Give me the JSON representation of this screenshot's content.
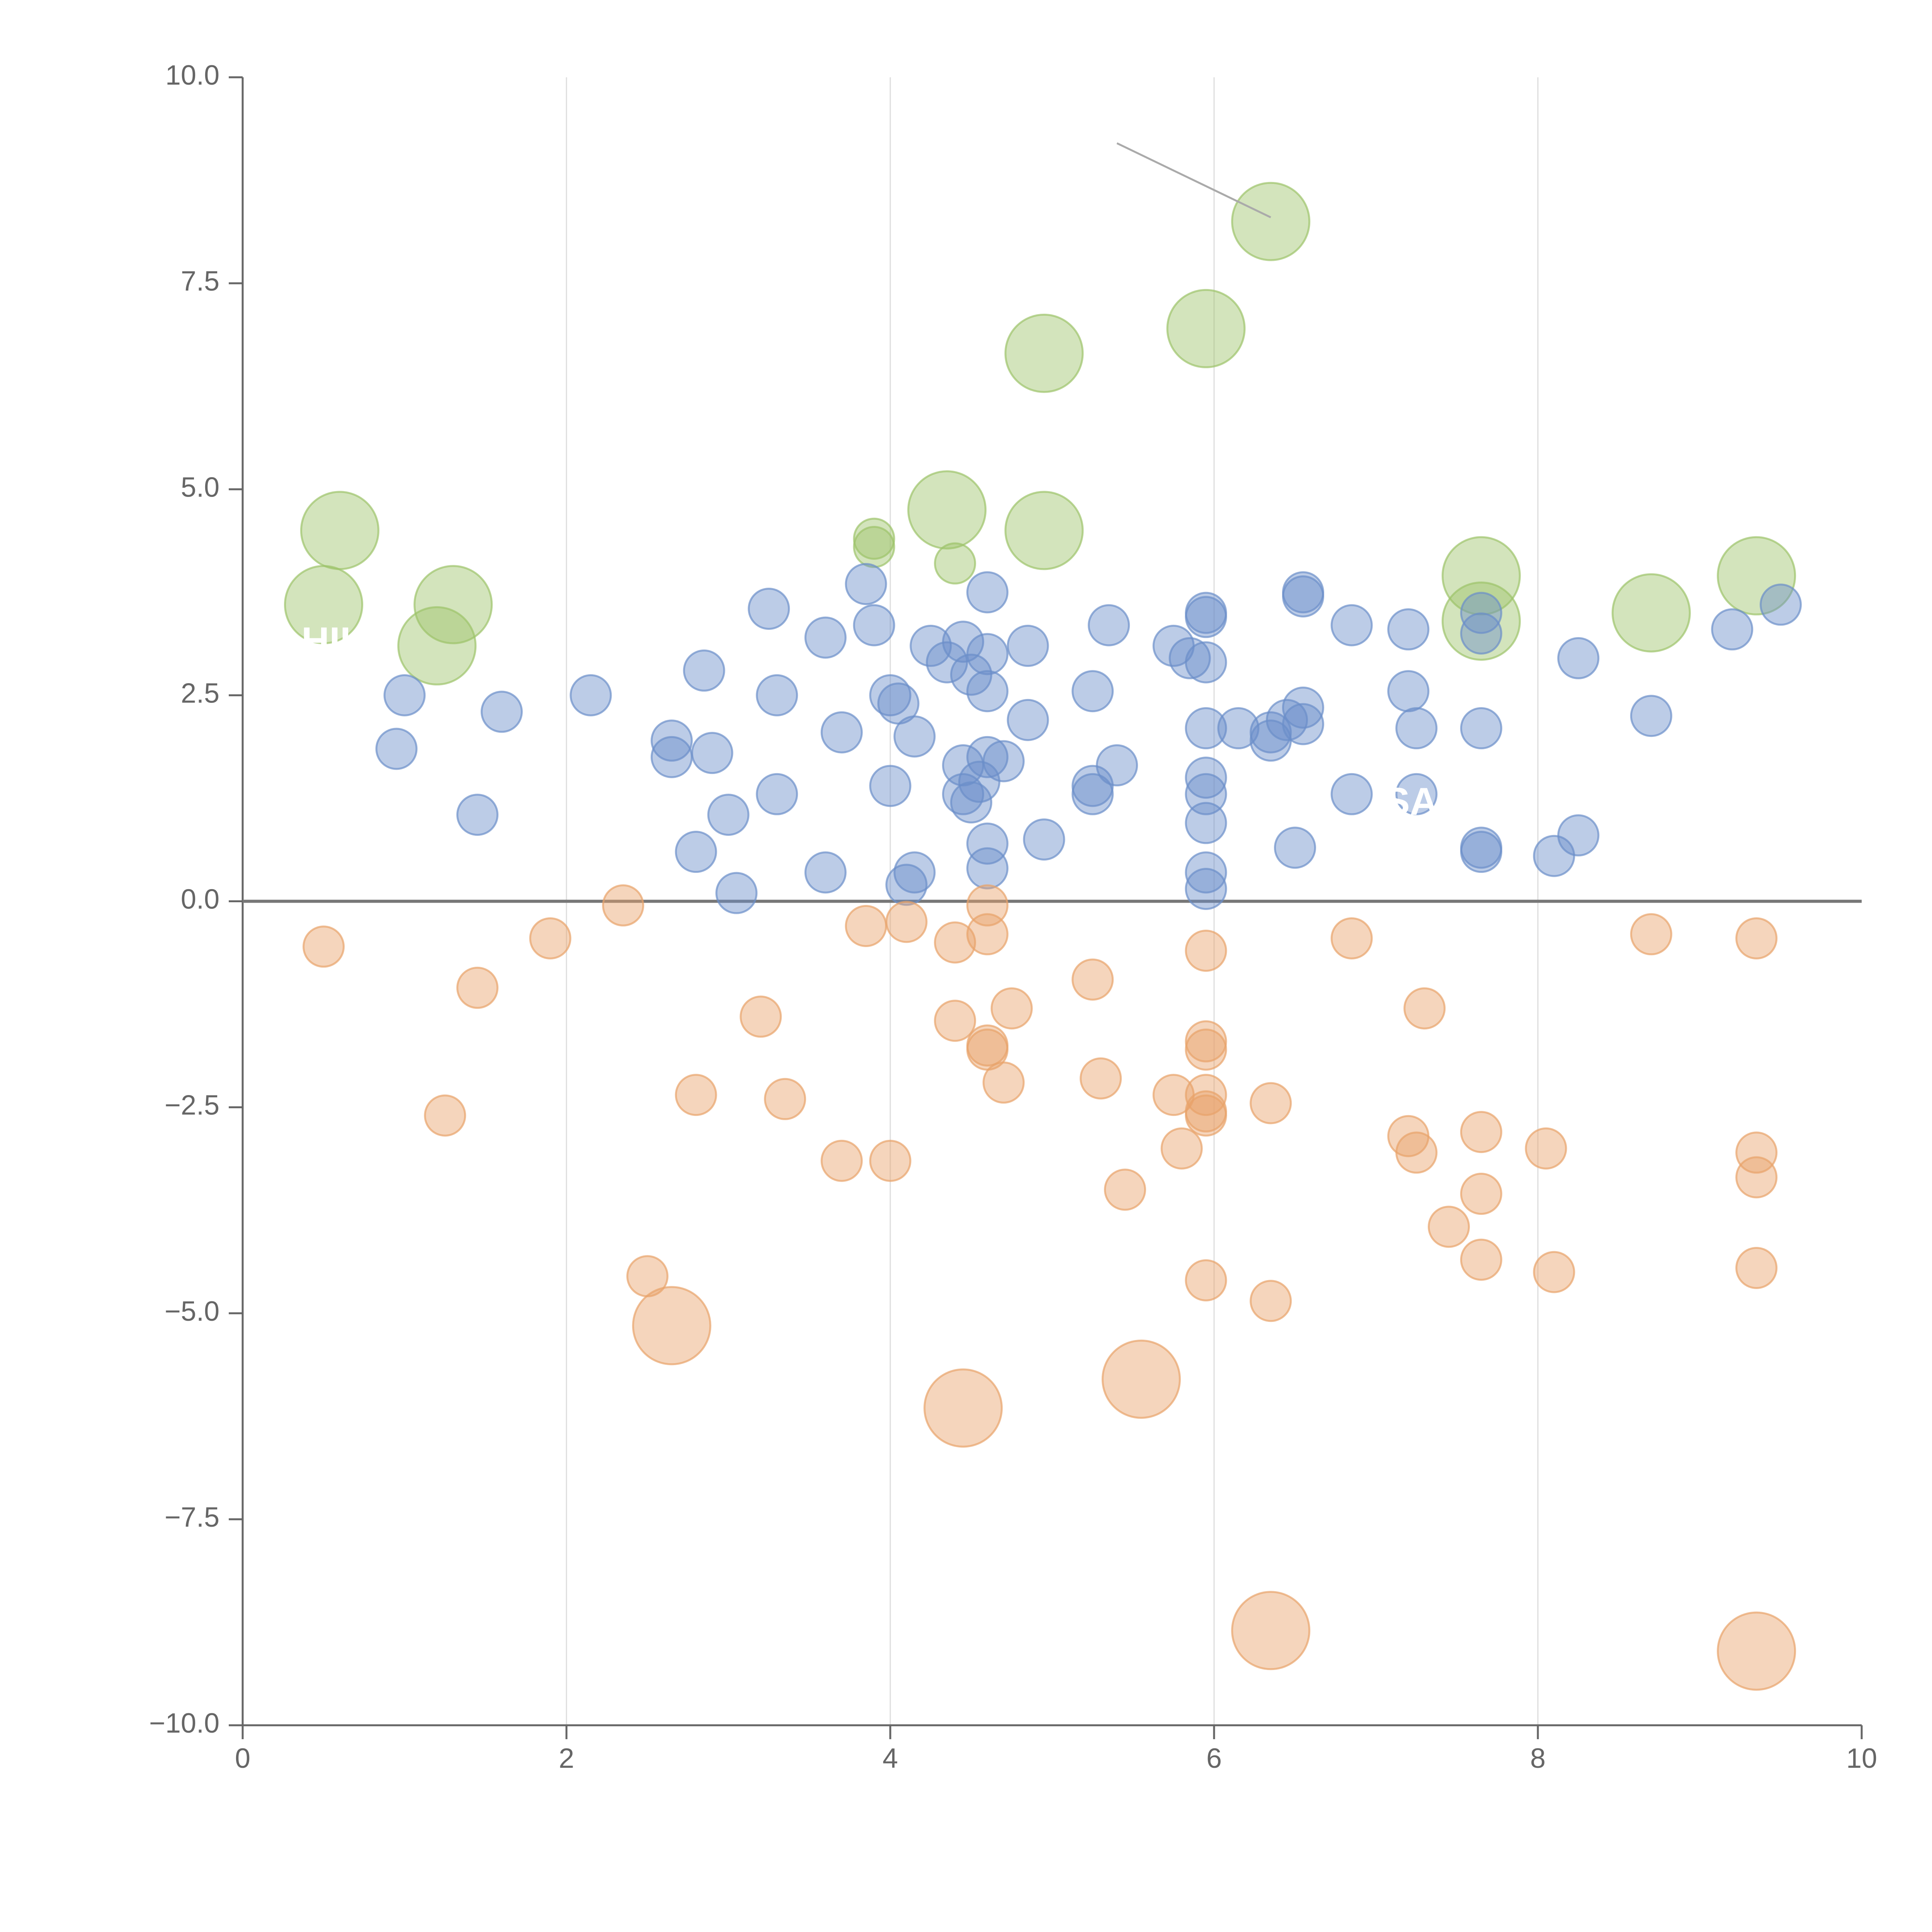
{
  "chart_data": {
    "type": "scatter",
    "title": "",
    "xlabel": "",
    "ylabel": "",
    "xlim": [
      0,
      10
    ],
    "ylim": [
      -10,
      10
    ],
    "x_ticks": [
      0,
      2,
      4,
      6,
      8,
      10
    ],
    "x_tick_labels": [
      "0",
      "2",
      "4",
      "6",
      "8",
      "10"
    ],
    "y_ticks": [
      10,
      7.5,
      5,
      2.5,
      0,
      -2.5,
      -5,
      -7.5,
      -10
    ],
    "y_tick_labels": [
      "10.0",
      "7.5",
      "5.0",
      "2.5",
      "0.0",
      "−2.5",
      "−5.0",
      "−7.5",
      "−10.0"
    ],
    "vertical_gridlines": [
      2,
      4,
      6,
      8
    ],
    "zero_line": 0,
    "colors": {
      "green": "#9dc36a",
      "blue": "#6b8ec9",
      "orange": "#e8a26a",
      "axis": "#666666",
      "grid": "#dddddd",
      "zero_line": "#777777"
    },
    "visible_label_fragments": [
      "HIKE",
      "SAKE"
    ],
    "annotation_leader": {
      "from": [
        5.4,
        9.2
      ],
      "to": [
        6.35,
        8.3
      ]
    },
    "series": [
      {
        "name": "green",
        "color": "#9dc36a",
        "points": [
          [
            0.6,
            4.5,
            2
          ],
          [
            0.5,
            3.6,
            2
          ],
          [
            1.3,
            3.6,
            2
          ],
          [
            1.2,
            3.1,
            2
          ],
          [
            3.9,
            4.3,
            1
          ],
          [
            3.9,
            4.4,
            1
          ],
          [
            4.4,
            4.1,
            1
          ],
          [
            4.35,
            4.75,
            2
          ],
          [
            4.95,
            4.5,
            2
          ],
          [
            4.95,
            6.65,
            2
          ],
          [
            5.95,
            6.95,
            2
          ],
          [
            6.35,
            8.25,
            2
          ],
          [
            7.65,
            3.95,
            2
          ],
          [
            7.65,
            3.4,
            2
          ],
          [
            8.7,
            3.5,
            2
          ],
          [
            9.35,
            3.95,
            2
          ]
        ]
      },
      {
        "name": "blue",
        "color": "#6b8ec9",
        "points": [
          [
            1.0,
            2.5,
            1
          ],
          [
            0.95,
            1.85,
            1
          ],
          [
            1.6,
            2.3,
            1
          ],
          [
            1.45,
            1.05,
            1
          ],
          [
            2.15,
            2.5,
            1
          ],
          [
            2.65,
            1.95,
            1
          ],
          [
            2.65,
            1.75,
            1
          ],
          [
            2.85,
            2.8,
            1
          ],
          [
            2.9,
            1.8,
            1
          ],
          [
            2.8,
            0.6,
            1
          ],
          [
            3.0,
            1.05,
            1
          ],
          [
            3.05,
            0.1,
            1
          ],
          [
            3.25,
            3.55,
            1
          ],
          [
            3.3,
            2.5,
            1
          ],
          [
            3.3,
            1.3,
            1
          ],
          [
            3.6,
            3.2,
            1
          ],
          [
            3.7,
            2.05,
            1
          ],
          [
            3.6,
            0.35,
            1
          ],
          [
            3.85,
            3.85,
            1
          ],
          [
            3.9,
            3.35,
            1
          ],
          [
            4.0,
            2.5,
            1
          ],
          [
            4.05,
            2.4,
            1
          ],
          [
            4.0,
            1.4,
            1
          ],
          [
            4.15,
            2.0,
            1
          ],
          [
            4.15,
            0.35,
            1
          ],
          [
            4.1,
            0.2,
            1
          ],
          [
            4.25,
            3.1,
            1
          ],
          [
            4.35,
            2.9,
            1
          ],
          [
            4.45,
            3.15,
            1
          ],
          [
            4.5,
            2.75,
            1
          ],
          [
            4.6,
            3.75,
            1
          ],
          [
            4.6,
            3.0,
            1
          ],
          [
            4.6,
            2.55,
            1
          ],
          [
            4.45,
            1.65,
            1
          ],
          [
            4.6,
            1.75,
            1
          ],
          [
            4.7,
            1.7,
            1
          ],
          [
            4.45,
            1.3,
            1
          ],
          [
            4.55,
            1.45,
            1
          ],
          [
            4.5,
            1.2,
            1
          ],
          [
            4.6,
            0.7,
            1
          ],
          [
            4.6,
            0.4,
            1
          ],
          [
            4.85,
            3.1,
            1
          ],
          [
            4.85,
            2.2,
            1
          ],
          [
            4.95,
            0.75,
            1
          ],
          [
            5.25,
            2.55,
            1
          ],
          [
            5.25,
            1.4,
            1
          ],
          [
            5.25,
            1.3,
            1
          ],
          [
            5.35,
            3.35,
            1
          ],
          [
            5.4,
            1.65,
            1
          ],
          [
            5.75,
            3.1,
            1
          ],
          [
            5.85,
            2.95,
            1
          ],
          [
            5.95,
            3.5,
            1
          ],
          [
            5.95,
            3.45,
            1
          ],
          [
            5.95,
            2.9,
            1
          ],
          [
            5.95,
            2.1,
            1
          ],
          [
            5.95,
            1.5,
            1
          ],
          [
            5.95,
            1.3,
            1
          ],
          [
            5.95,
            0.95,
            1
          ],
          [
            5.95,
            0.35,
            1
          ],
          [
            5.95,
            0.15,
            1
          ],
          [
            6.15,
            2.1,
            1
          ],
          [
            6.35,
            2.05,
            1
          ],
          [
            6.35,
            1.95,
            1
          ],
          [
            6.45,
            2.2,
            1
          ],
          [
            6.5,
            0.65,
            1
          ],
          [
            6.55,
            3.75,
            1
          ],
          [
            6.55,
            3.7,
            1
          ],
          [
            6.55,
            2.35,
            1
          ],
          [
            6.55,
            2.15,
            1
          ],
          [
            6.85,
            3.35,
            1
          ],
          [
            6.85,
            1.3,
            1
          ],
          [
            7.2,
            3.3,
            1
          ],
          [
            7.2,
            2.55,
            1
          ],
          [
            7.25,
            2.1,
            1
          ],
          [
            7.25,
            1.3,
            1
          ],
          [
            7.65,
            3.5,
            1
          ],
          [
            7.65,
            3.25,
            1
          ],
          [
            7.65,
            2.1,
            1
          ],
          [
            7.65,
            0.65,
            1
          ],
          [
            7.65,
            0.6,
            1
          ],
          [
            8.1,
            0.55,
            1
          ],
          [
            8.25,
            2.95,
            1
          ],
          [
            8.25,
            0.8,
            1
          ],
          [
            8.7,
            2.25,
            1
          ],
          [
            9.2,
            3.3,
            1
          ],
          [
            9.5,
            3.6,
            1
          ]
        ]
      },
      {
        "name": "orange",
        "color": "#e8a26a",
        "points": [
          [
            0.5,
            -0.55,
            1
          ],
          [
            1.45,
            -1.05,
            1
          ],
          [
            1.9,
            -0.45,
            1
          ],
          [
            1.25,
            -2.6,
            1
          ],
          [
            2.35,
            -0.05,
            1
          ],
          [
            2.5,
            -4.55,
            1
          ],
          [
            2.65,
            -5.15,
            2
          ],
          [
            2.8,
            -2.35,
            1
          ],
          [
            3.2,
            -1.4,
            1
          ],
          [
            3.35,
            -2.4,
            1
          ],
          [
            3.7,
            -3.15,
            1
          ],
          [
            3.85,
            -0.3,
            1
          ],
          [
            4.0,
            -3.15,
            1
          ],
          [
            4.1,
            -0.25,
            1
          ],
          [
            4.4,
            -0.5,
            1
          ],
          [
            4.4,
            -1.45,
            1
          ],
          [
            4.6,
            -0.05,
            1
          ],
          [
            4.6,
            -0.4,
            1
          ],
          [
            4.6,
            -1.75,
            1
          ],
          [
            4.6,
            -1.8,
            1
          ],
          [
            4.7,
            -2.2,
            1
          ],
          [
            4.75,
            -1.3,
            1
          ],
          [
            4.45,
            -6.15,
            2
          ],
          [
            5.25,
            -0.95,
            1
          ],
          [
            5.3,
            -2.15,
            1
          ],
          [
            5.45,
            -3.5,
            1
          ],
          [
            5.55,
            -5.8,
            2
          ],
          [
            5.75,
            -2.35,
            1
          ],
          [
            5.8,
            -3.0,
            1
          ],
          [
            5.95,
            -0.6,
            1
          ],
          [
            5.95,
            -1.7,
            1
          ],
          [
            5.95,
            -1.8,
            1
          ],
          [
            5.95,
            -2.35,
            1
          ],
          [
            5.95,
            -2.55,
            1
          ],
          [
            5.95,
            -2.6,
            1
          ],
          [
            5.95,
            -4.6,
            1
          ],
          [
            6.35,
            -2.45,
            1
          ],
          [
            6.35,
            -4.85,
            1
          ],
          [
            6.35,
            -8.85,
            2
          ],
          [
            6.85,
            -0.45,
            1
          ],
          [
            7.2,
            -2.85,
            1
          ],
          [
            7.25,
            -3.05,
            1
          ],
          [
            7.3,
            -1.3,
            1
          ],
          [
            7.45,
            -3.95,
            1
          ],
          [
            7.65,
            -2.8,
            1
          ],
          [
            7.65,
            -3.55,
            1
          ],
          [
            7.65,
            -4.35,
            1
          ],
          [
            8.05,
            -3.0,
            1
          ],
          [
            8.1,
            -4.5,
            1
          ],
          [
            8.7,
            -0.4,
            1
          ],
          [
            9.35,
            -0.45,
            1
          ],
          [
            9.35,
            -3.05,
            1
          ],
          [
            9.35,
            -3.35,
            1
          ],
          [
            9.35,
            -4.45,
            1
          ],
          [
            9.35,
            -9.1,
            2
          ]
        ]
      }
    ]
  }
}
